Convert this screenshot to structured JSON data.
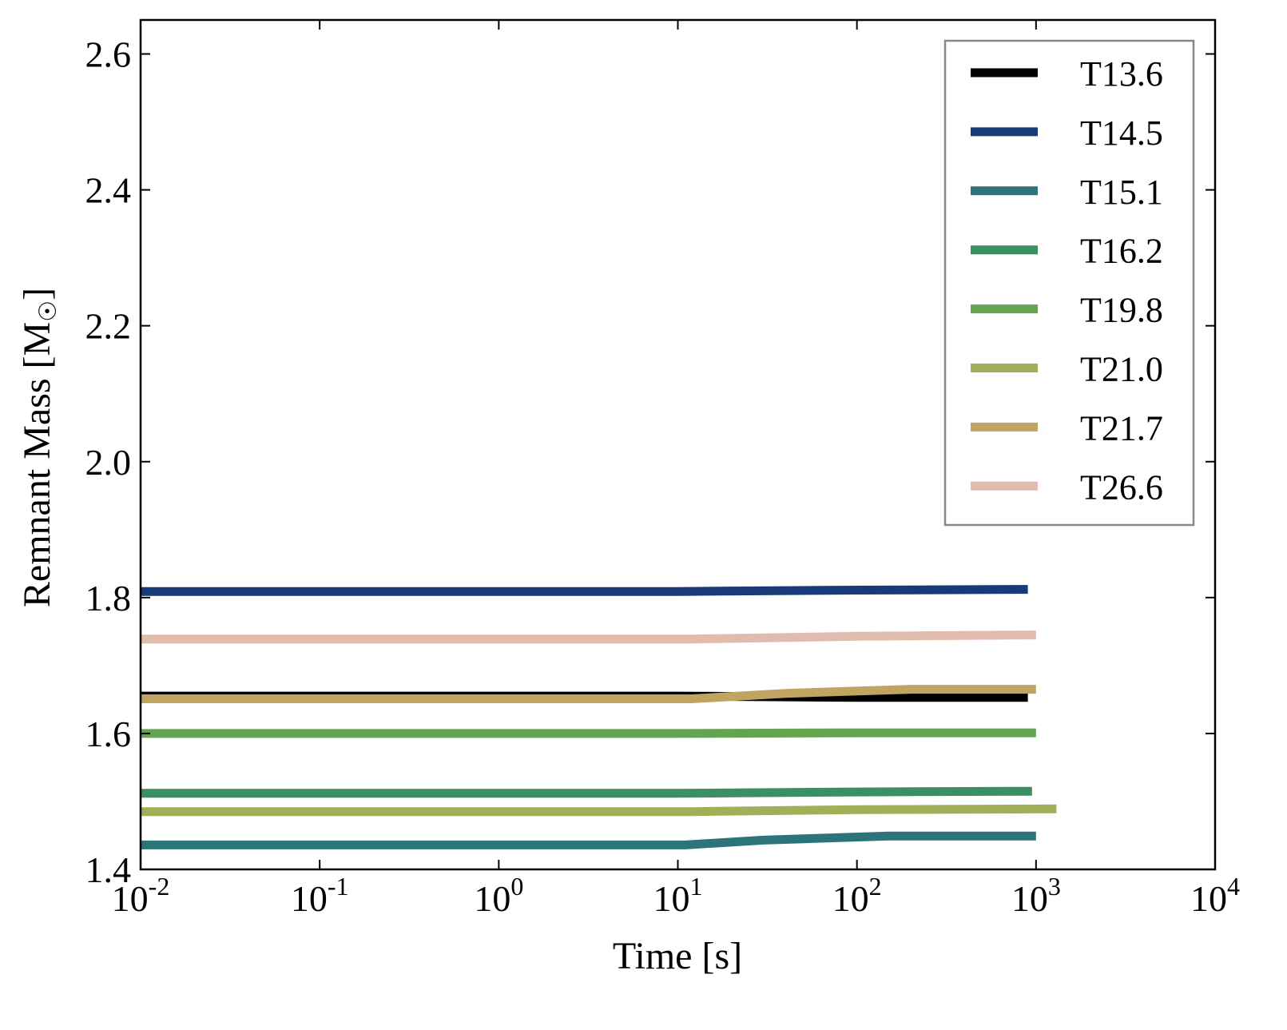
{
  "chart_data": {
    "type": "line",
    "title": "",
    "xlabel": "Time [s]",
    "ylabel": "Remnant Mass [M",
    "ylabel_suffix": "]",
    "ylabel_symbol": "☉",
    "xscale": "log",
    "xlim": [
      0.01,
      10000
    ],
    "ylim": [
      1.4,
      2.65
    ],
    "xticks": [
      {
        "exp": "-2"
      },
      {
        "exp": "-1"
      },
      {
        "exp": "0"
      },
      {
        "exp": "1"
      },
      {
        "exp": "2"
      },
      {
        "exp": "3"
      },
      {
        "exp": "4"
      }
    ],
    "xtick_base": "10",
    "yticks": [
      "1.4",
      "1.6",
      "1.8",
      "2.0",
      "2.2",
      "2.4",
      "2.6"
    ],
    "legend_position": "top-right",
    "series": [
      {
        "name": "T13.6",
        "color": "#000000",
        "x": [
          0.01,
          10,
          100,
          900
        ],
        "y": [
          1.655,
          1.655,
          1.653,
          1.653
        ]
      },
      {
        "name": "T14.5",
        "color": "#173a78",
        "x": [
          0.01,
          10,
          100,
          900
        ],
        "y": [
          1.809,
          1.809,
          1.811,
          1.812
        ]
      },
      {
        "name": "T15.1",
        "color": "#2b7479",
        "x": [
          0.01,
          11,
          30,
          150,
          1000
        ],
        "y": [
          1.436,
          1.436,
          1.443,
          1.449,
          1.449
        ]
      },
      {
        "name": "T16.2",
        "color": "#3b8f62",
        "x": [
          0.01,
          10,
          100,
          950
        ],
        "y": [
          1.512,
          1.512,
          1.514,
          1.515
        ]
      },
      {
        "name": "T19.8",
        "color": "#64a34f",
        "x": [
          0.01,
          10,
          100,
          1000
        ],
        "y": [
          1.6,
          1.6,
          1.601,
          1.601
        ]
      },
      {
        "name": "T21.0",
        "color": "#a0b058",
        "x": [
          0.01,
          12,
          100,
          1300
        ],
        "y": [
          1.485,
          1.485,
          1.488,
          1.489
        ]
      },
      {
        "name": "T21.7",
        "color": "#bfa462",
        "x": [
          0.01,
          12,
          40,
          200,
          1000
        ],
        "y": [
          1.651,
          1.651,
          1.659,
          1.665,
          1.665
        ]
      },
      {
        "name": "T26.6",
        "color": "#e0bcae",
        "x": [
          0.01,
          12,
          100,
          1000
        ],
        "y": [
          1.739,
          1.739,
          1.743,
          1.745
        ]
      }
    ]
  }
}
